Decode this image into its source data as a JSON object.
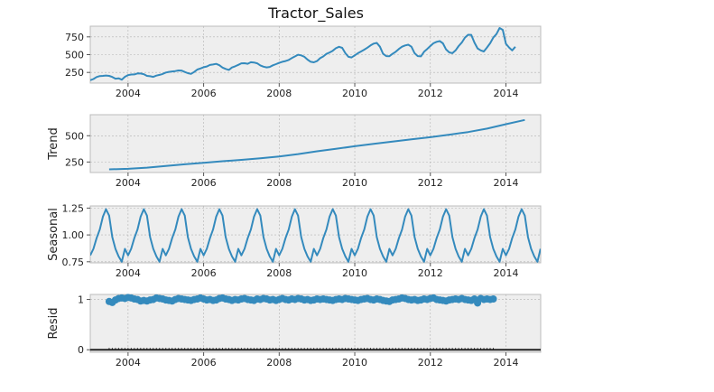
{
  "title": "Tractor_Sales",
  "chart_data": [
    {
      "type": "line",
      "panel": "observed",
      "ylabel": "",
      "ylim": [
        100,
        900
      ],
      "yticks": [
        250,
        500,
        750
      ],
      "xlim": [
        2003.0,
        2014.92
      ],
      "xticks": [
        2004,
        2006,
        2008,
        2010,
        2012,
        2014
      ],
      "grid": true,
      "color": "#348ABD",
      "series": [
        {
          "x_start": 2003.0,
          "x_step": 0.08333,
          "values": [
            141,
            157,
            185,
            199,
            201,
            207,
            201,
            186,
            162,
            167,
            148,
            189,
            212,
            220,
            222,
            236,
            234,
            226,
            202,
            196,
            188,
            205,
            216,
            228,
            249,
            258,
            264,
            269,
            278,
            276,
            256,
            240,
            230,
            256,
            290,
            306,
            324,
            334,
            355,
            362,
            370,
            352,
            318,
            300,
            286,
            320,
            336,
            357,
            378,
            380,
            372,
            393,
            390,
            378,
            349,
            331,
            321,
            327,
            350,
            367,
            385,
            400,
            410,
            425,
            452,
            474,
            499,
            490,
            470,
            430,
            400,
            392,
            410,
            450,
            475,
            510,
            530,
            555,
            590,
            610,
            595,
            520,
            470,
            460,
            490,
            520,
            545,
            570,
            598,
            630,
            655,
            665,
            612,
            512,
            480,
            478,
            512,
            540,
            580,
            612,
            630,
            640,
            612,
            520,
            480,
            476,
            540,
            580,
            620,
            660,
            680,
            690,
            659,
            572,
            532,
            520,
            560,
            620,
            670,
            740,
            780,
            778,
            670,
            587,
            560,
            545,
            600,
            660,
            740,
            790,
            875,
            848,
            652,
            600,
            560,
            610
          ]
        }
      ]
    },
    {
      "type": "line",
      "panel": "trend",
      "ylabel": "Trend",
      "ylim": [
        150,
        700
      ],
      "yticks": [
        250,
        500
      ],
      "xlim": [
        2003.0,
        2014.92
      ],
      "xticks": [
        2004,
        2006,
        2008,
        2010,
        2012,
        2014
      ],
      "grid": true,
      "color": "#348ABD",
      "series": [
        {
          "x": [
            2003.5,
            2004.0,
            2004.5,
            2005.0,
            2005.5,
            2006.0,
            2006.5,
            2007.0,
            2007.5,
            2008.0,
            2008.5,
            2009.0,
            2009.5,
            2010.0,
            2010.5,
            2011.0,
            2011.5,
            2012.0,
            2012.5,
            2013.0,
            2013.5,
            2014.0,
            2014.5
          ],
          "values": [
            180,
            185,
            196,
            212,
            228,
            242,
            257,
            270,
            286,
            303,
            325,
            352,
            375,
            400,
            423,
            445,
            465,
            486,
            510,
            535,
            568,
            610,
            650
          ]
        }
      ]
    },
    {
      "type": "line",
      "panel": "seasonal",
      "ylabel": "Seasonal",
      "ylim": [
        0.74,
        1.27
      ],
      "yticks": [
        0.75,
        1.0,
        1.25
      ],
      "ytick_labels": [
        "0.75",
        "1.00",
        "1.25"
      ],
      "xlim": [
        2003.0,
        2014.92
      ],
      "xticks": [
        2004,
        2006,
        2008,
        2010,
        2012,
        2014
      ],
      "grid": true,
      "color": "#348ABD",
      "series": [
        {
          "x_start": 2003.0,
          "x_step": 0.08333,
          "pattern": [
            0.81,
            0.87,
            0.97,
            1.05,
            1.17,
            1.24,
            1.18,
            0.98,
            0.87,
            0.8,
            0.75,
            0.87
          ]
        }
      ]
    },
    {
      "type": "scatter",
      "panel": "resid",
      "ylabel": "Resid",
      "ylim": [
        -0.05,
        1.1
      ],
      "yticks": [
        0,
        1
      ],
      "xlim": [
        2003.0,
        2014.92
      ],
      "xticks": [
        2004,
        2006,
        2008,
        2010,
        2012,
        2014
      ],
      "grid": true,
      "color": "#348ABD",
      "series": [
        {
          "x_start": 2003.5,
          "x_step": 0.08333,
          "values": [
            0.96,
            0.94,
            0.99,
            1.02,
            1.03,
            1.02,
            1.04,
            1.03,
            1.01,
            1.0,
            0.97,
            0.98,
            0.97,
            0.99,
            1.0,
            1.03,
            1.02,
            1.01,
            0.99,
            0.98,
            0.97,
            1.0,
            1.02,
            1.01,
            1.0,
            0.99,
            0.98,
            1.0,
            1.01,
            1.03,
            1.01,
            0.99,
            1.0,
            0.98,
            0.99,
            1.02,
            1.03,
            1.01,
            1.0,
            0.98,
            1.0,
            0.99,
            1.01,
            1.02,
            1.0,
            0.99,
            0.98,
            1.01,
            1.0,
            1.02,
            1.01,
            0.99,
            1.0,
            0.98,
            1.0,
            1.02,
            1.0,
            0.99,
            1.01,
            1.0,
            1.02,
            1.01,
            0.99,
            1.0,
            0.98,
            0.99,
            1.01,
            1.0,
            1.01,
            1.0,
            0.99,
            0.98,
            1.0,
            1.01,
            1.0,
            1.02,
            1.01,
            1.0,
            0.99,
            0.98,
            1.0,
            1.01,
            1.02,
            1.0,
            0.99,
            1.01,
            1.0,
            0.98,
            0.97,
            0.96,
            0.99,
            1.0,
            1.01,
            1.03,
            1.02,
            1.0,
            0.99,
            1.0,
            0.98,
            0.99,
            1.01,
            1.0,
            1.02,
            1.03,
            1.0,
            0.99,
            0.98,
            0.97,
            0.99,
            1.0,
            1.01,
            1.0,
            1.02,
            1.0,
            0.99,
            0.98,
            1.01,
            0.93,
            1.02,
            1.0,
            1.01,
            1.0,
            1.01
          ]
        }
      ]
    }
  ]
}
